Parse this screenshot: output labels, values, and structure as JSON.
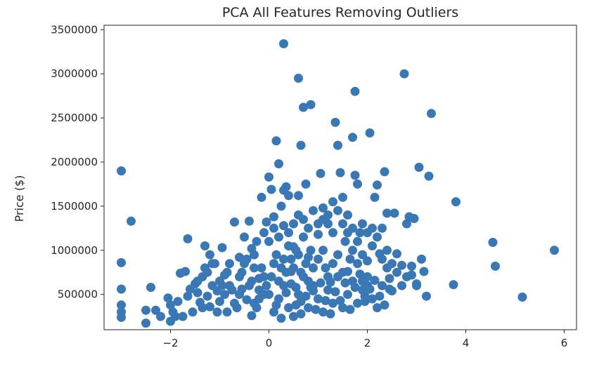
{
  "chart_data": {
    "type": "scatter",
    "title": "PCA All Features Removing Outliers",
    "xlabel": "",
    "ylabel": "Price ($)",
    "xlim": [
      -3.35,
      6.25
    ],
    "ylim": [
      100000,
      3550000
    ],
    "xticks": [
      -2,
      0,
      2,
      4,
      6
    ],
    "xtick_labels": [
      "−2",
      "0",
      "2",
      "4",
      "6"
    ],
    "yticks": [
      500000,
      1000000,
      1500000,
      2000000,
      2500000,
      3000000,
      3500000
    ],
    "ytick_labels": [
      "500000",
      "1000000",
      "1500000",
      "2000000",
      "2500000",
      "3000000",
      "3500000"
    ],
    "grid": false,
    "legend": "none",
    "marker_color": "#3a78b5",
    "points": [
      [
        -3.0,
        1900000
      ],
      [
        -3.0,
        860000
      ],
      [
        -3.0,
        560000
      ],
      [
        -3.0,
        380000
      ],
      [
        -3.0,
        300000
      ],
      [
        -3.0,
        240000
      ],
      [
        -2.8,
        1330000
      ],
      [
        -2.4,
        580000
      ],
      [
        -2.5,
        320000
      ],
      [
        -2.5,
        175000
      ],
      [
        -2.3,
        320000
      ],
      [
        -2.2,
        250000
      ],
      [
        -2.05,
        460000
      ],
      [
        -2.0,
        380000
      ],
      [
        -1.95,
        300000
      ],
      [
        -1.9,
        250000
      ],
      [
        -2.0,
        195000
      ],
      [
        -1.85,
        420000
      ],
      [
        -1.8,
        740000
      ],
      [
        -1.7,
        760000
      ],
      [
        -1.65,
        480000
      ],
      [
        -1.75,
        250000
      ],
      [
        -1.6,
        560000
      ],
      [
        -1.55,
        300000
      ],
      [
        -1.5,
        620000
      ],
      [
        -1.45,
        520000
      ],
      [
        -1.4,
        410000
      ],
      [
        -1.35,
        700000
      ],
      [
        -1.3,
        1050000
      ],
      [
        -1.25,
        480000
      ],
      [
        -1.2,
        360000
      ],
      [
        -1.15,
        600000
      ],
      [
        -1.1,
        850000
      ],
      [
        -1.05,
        540000
      ],
      [
        -1.0,
        420000
      ],
      [
        -0.95,
        1030000
      ],
      [
        -0.9,
        720000
      ],
      [
        -0.85,
        300000
      ],
      [
        -0.8,
        600000
      ],
      [
        -1.65,
        1130000
      ],
      [
        -0.7,
        1320000
      ],
      [
        -0.6,
        920000
      ],
      [
        -0.55,
        560000
      ],
      [
        -0.5,
        1150000
      ],
      [
        -0.45,
        440000
      ],
      [
        -0.4,
        1330000
      ],
      [
        -0.35,
        260000
      ],
      [
        -0.3,
        800000
      ],
      [
        -0.25,
        1100000
      ],
      [
        -0.2,
        680000
      ],
      [
        -0.15,
        1600000
      ],
      [
        -0.1,
        500000
      ],
      [
        -0.05,
        1320000
      ],
      [
        -0.35,
        1020000
      ],
      [
        -0.6,
        500000
      ],
      [
        0.0,
        1830000
      ],
      [
        0.05,
        1690000
      ],
      [
        0.1,
        1380000
      ],
      [
        0.15,
        2240000
      ],
      [
        0.2,
        1980000
      ],
      [
        0.25,
        1500000
      ],
      [
        0.3,
        1680000
      ],
      [
        0.35,
        1720000
      ],
      [
        0.4,
        1620000
      ],
      [
        0.3,
        3340000
      ],
      [
        0.6,
        2950000
      ],
      [
        0.7,
        2620000
      ],
      [
        0.85,
        2650000
      ],
      [
        0.65,
        2190000
      ],
      [
        0.75,
        1750000
      ],
      [
        0.6,
        1620000
      ],
      [
        0.5,
        1040000
      ],
      [
        0.45,
        760000
      ],
      [
        0.55,
        580000
      ],
      [
        0.65,
        420000
      ],
      [
        0.8,
        920000
      ],
      [
        0.9,
        540000
      ],
      [
        1.0,
        1180000
      ],
      [
        1.05,
        1870000
      ],
      [
        1.1,
        1480000
      ],
      [
        1.15,
        800000
      ],
      [
        1.2,
        1300000
      ],
      [
        1.25,
        640000
      ],
      [
        1.3,
        1550000
      ],
      [
        1.35,
        2450000
      ],
      [
        1.4,
        2190000
      ],
      [
        1.45,
        1880000
      ],
      [
        1.5,
        1600000
      ],
      [
        1.55,
        1100000
      ],
      [
        1.6,
        760000
      ],
      [
        1.65,
        900000
      ],
      [
        1.7,
        2280000
      ],
      [
        1.75,
        2800000
      ],
      [
        1.75,
        1850000
      ],
      [
        1.8,
        1750000
      ],
      [
        1.85,
        1200000
      ],
      [
        1.9,
        650000
      ],
      [
        1.95,
        420000
      ],
      [
        2.0,
        880000
      ],
      [
        2.05,
        2330000
      ],
      [
        2.1,
        1250000
      ],
      [
        2.15,
        1600000
      ],
      [
        2.2,
        1740000
      ],
      [
        2.25,
        960000
      ],
      [
        2.3,
        1250000
      ],
      [
        2.35,
        1890000
      ],
      [
        2.4,
        1420000
      ],
      [
        2.45,
        680000
      ],
      [
        2.5,
        540000
      ],
      [
        2.55,
        1420000
      ],
      [
        2.6,
        960000
      ],
      [
        2.7,
        830000
      ],
      [
        2.75,
        3000000
      ],
      [
        2.8,
        1300000
      ],
      [
        2.85,
        1380000
      ],
      [
        2.9,
        720000
      ],
      [
        2.95,
        1360000
      ],
      [
        3.0,
        600000
      ],
      [
        3.05,
        1940000
      ],
      [
        3.1,
        900000
      ],
      [
        3.15,
        760000
      ],
      [
        3.2,
        480000
      ],
      [
        3.25,
        1840000
      ],
      [
        3.3,
        2550000
      ],
      [
        3.0,
        620000
      ],
      [
        3.8,
        1550000
      ],
      [
        3.75,
        610000
      ],
      [
        4.55,
        1090000
      ],
      [
        4.6,
        820000
      ],
      [
        5.15,
        470000
      ],
      [
        5.8,
        1000000
      ],
      [
        0.1,
        300000
      ],
      [
        0.2,
        450000
      ],
      [
        0.3,
        600000
      ],
      [
        0.4,
        350000
      ],
      [
        0.5,
        250000
      ],
      [
        0.6,
        500000
      ],
      [
        0.7,
        700000
      ],
      [
        0.8,
        350000
      ],
      [
        0.9,
        600000
      ],
      [
        1.0,
        450000
      ],
      [
        1.1,
        300000
      ],
      [
        1.2,
        550000
      ],
      [
        1.3,
        400000
      ],
      [
        1.4,
        700000
      ],
      [
        1.5,
        350000
      ],
      [
        1.6,
        500000
      ],
      [
        1.7,
        650000
      ],
      [
        1.8,
        400000
      ],
      [
        1.9,
        550000
      ],
      [
        2.0,
        700000
      ],
      [
        2.1,
        450000
      ],
      [
        2.2,
        350000
      ],
      [
        2.3,
        600000
      ],
      [
        2.4,
        800000
      ],
      [
        -0.3,
        400000
      ],
      [
        -0.2,
        550000
      ],
      [
        -0.1,
        700000
      ],
      [
        0.0,
        500000
      ],
      [
        0.1,
        850000
      ],
      [
        0.2,
        650000
      ],
      [
        0.3,
        900000
      ],
      [
        0.4,
        1050000
      ],
      [
        0.5,
        800000
      ],
      [
        0.6,
        950000
      ],
      [
        0.7,
        1150000
      ],
      [
        0.8,
        650000
      ],
      [
        0.9,
        800000
      ],
      [
        1.0,
        900000
      ],
      [
        1.1,
        1000000
      ],
      [
        1.2,
        700000
      ],
      [
        1.3,
        850000
      ],
      [
        1.4,
        950000
      ],
      [
        1.5,
        750000
      ],
      [
        1.6,
        1200000
      ],
      [
        1.7,
        1000000
      ],
      [
        1.8,
        850000
      ],
      [
        1.9,
        950000
      ],
      [
        2.0,
        600000
      ],
      [
        -1.3,
        800000
      ],
      [
        -1.2,
        950000
      ],
      [
        -1.0,
        650000
      ],
      [
        -0.9,
        500000
      ],
      [
        -0.8,
        850000
      ],
      [
        -0.7,
        400000
      ],
      [
        -0.6,
        700000
      ],
      [
        -0.5,
        850000
      ],
      [
        -0.4,
        600000
      ],
      [
        -0.3,
        950000
      ],
      [
        -0.2,
        450000
      ],
      [
        -0.1,
        1200000
      ],
      [
        0.0,
        1100000
      ],
      [
        0.1,
        1250000
      ],
      [
        0.2,
        1150000
      ],
      [
        0.3,
        1280000
      ],
      [
        0.4,
        1200000
      ],
      [
        0.5,
        1300000
      ],
      [
        0.6,
        1400000
      ],
      [
        0.7,
        1350000
      ],
      [
        0.8,
        1250000
      ],
      [
        0.9,
        1450000
      ],
      [
        1.0,
        1300000
      ],
      [
        1.1,
        1350000
      ],
      [
        1.2,
        1400000
      ],
      [
        1.3,
        1200000
      ],
      [
        1.4,
        1450000
      ],
      [
        1.5,
        1300000
      ],
      [
        1.6,
        1400000
      ],
      [
        1.7,
        1250000
      ],
      [
        1.8,
        1100000
      ],
      [
        1.9,
        1300000
      ],
      [
        2.0,
        1200000
      ],
      [
        2.1,
        1050000
      ],
      [
        2.2,
        1150000
      ],
      [
        2.3,
        900000
      ],
      [
        2.4,
        1000000
      ],
      [
        2.5,
        850000
      ],
      [
        2.6,
        750000
      ],
      [
        2.7,
        600000
      ],
      [
        2.8,
        700000
      ],
      [
        2.9,
        820000
      ],
      [
        0.15,
        380000
      ],
      [
        0.25,
        230000
      ],
      [
        0.35,
        520000
      ],
      [
        0.45,
        620000
      ],
      [
        0.55,
        380000
      ],
      [
        0.65,
        280000
      ],
      [
        0.75,
        480000
      ],
      [
        0.85,
        580000
      ],
      [
        0.95,
        330000
      ],
      [
        1.05,
        630000
      ],
      [
        1.15,
        430000
      ],
      [
        1.25,
        280000
      ],
      [
        1.35,
        530000
      ],
      [
        1.45,
        430000
      ],
      [
        1.55,
        630000
      ],
      [
        1.65,
        330000
      ],
      [
        1.75,
        580000
      ],
      [
        1.85,
        730000
      ],
      [
        1.95,
        480000
      ],
      [
        2.05,
        560000
      ],
      [
        2.15,
        660000
      ],
      [
        2.25,
        480000
      ],
      [
        2.35,
        380000
      ],
      [
        2.45,
        560000
      ],
      [
        -1.45,
        650000
      ],
      [
        -1.35,
        350000
      ],
      [
        -1.25,
        750000
      ],
      [
        -1.15,
        850000
      ],
      [
        -1.05,
        300000
      ],
      [
        -0.95,
        600000
      ],
      [
        -0.85,
        750000
      ],
      [
        -0.75,
        550000
      ],
      [
        -0.65,
        350000
      ],
      [
        -0.55,
        750000
      ],
      [
        -0.45,
        900000
      ],
      [
        -0.35,
        650000
      ],
      [
        -0.25,
        350000
      ],
      [
        -0.15,
        800000
      ],
      [
        -0.05,
        600000
      ],
      [
        0.05,
        700000
      ],
      [
        0.15,
        950000
      ],
      [
        0.25,
        800000
      ],
      [
        0.35,
        750000
      ],
      [
        0.45,
        900000
      ],
      [
        0.55,
        1000000
      ],
      [
        0.65,
        750000
      ],
      [
        0.75,
        850000
      ],
      [
        0.85,
        1000000
      ]
    ]
  }
}
